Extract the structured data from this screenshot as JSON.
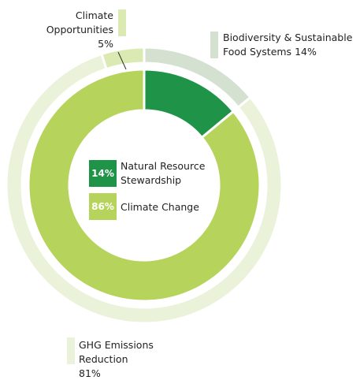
{
  "chart_data": {
    "type": "donut",
    "rings": [
      {
        "categories": [
          "Natural Resource Stewardship",
          "Climate Change"
        ],
        "values": [
          14,
          86
        ],
        "value_labels": [
          "14%",
          "86%"
        ],
        "colors": [
          "#1f9448",
          "#b6d35c"
        ]
      },
      {
        "categories": [
          "Biodiversity & Sustainable Food Systems",
          "GHG Emissions Reduction",
          "Climate Opportunities"
        ],
        "values": [
          14,
          81,
          5
        ],
        "value_labels": [
          "14%",
          "81%",
          "5%"
        ],
        "colors": [
          "#d5e1d0",
          "#eaf2da",
          "#dbe9b3"
        ]
      }
    ]
  }
}
